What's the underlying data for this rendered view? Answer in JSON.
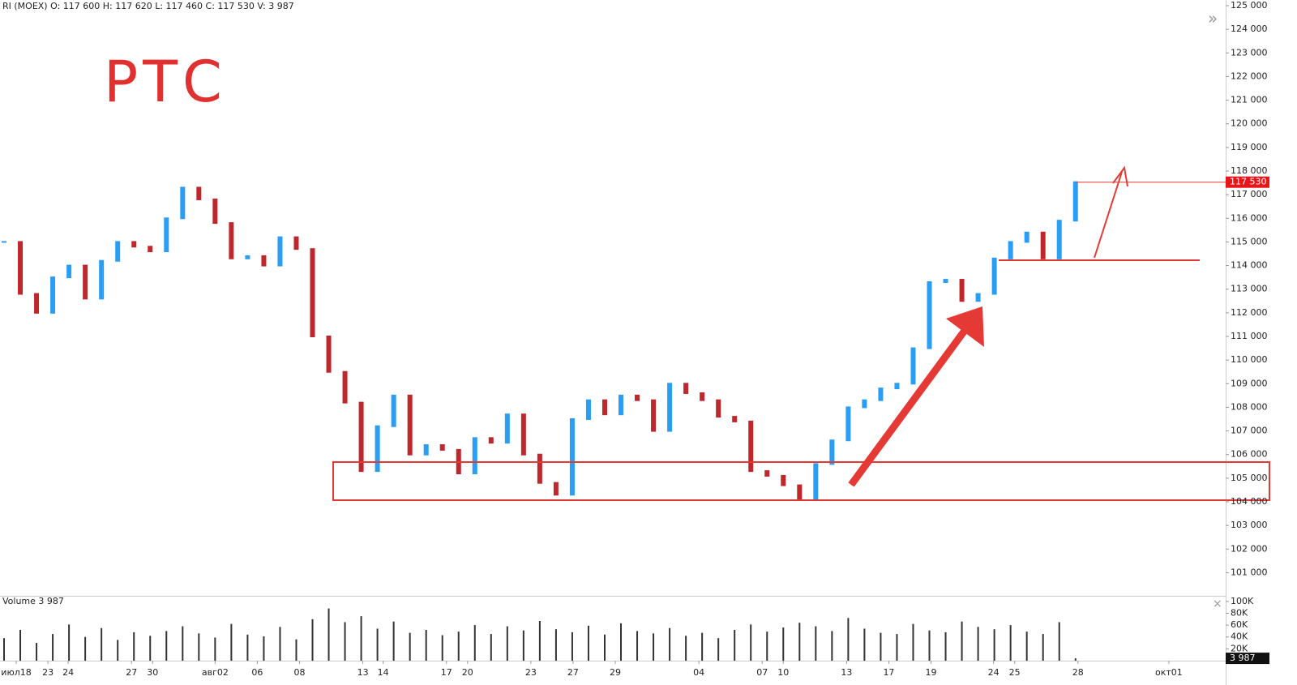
{
  "chart_data": {
    "type": "candlestick",
    "header": "RI (MOEX) O: 117 600 H: 117 620 L: 117 460 C: 117 530 V: 3 987",
    "annotation": "РТС",
    "up_color": "#2a9df4",
    "down_color": "#c0272d",
    "values": [
      115000,
      112800,
      112000,
      113500,
      114000,
      112600,
      114200,
      115000,
      114800,
      114600,
      116000,
      117300,
      116800,
      115800,
      114300,
      114400,
      114000,
      115200,
      114700,
      111000,
      109500,
      108200,
      105300,
      107200,
      108500,
      106000,
      106400,
      106200,
      105200,
      106700,
      106500,
      107700,
      106000,
      104800,
      104300,
      107500,
      108300,
      107700,
      108500,
      108300,
      107000,
      109000,
      108600,
      108300,
      107600,
      107400,
      105300,
      105100,
      104700,
      104100,
      105600,
      106600,
      108000,
      108300,
      108800,
      109000,
      110500,
      113300,
      113400,
      112500,
      112800,
      114300,
      115000,
      115400,
      114300,
      115900,
      117530
    ],
    "last_price": {
      "value": 117530,
      "label": "117 530"
    },
    "xlim": [
      -0.25,
      75.25
    ],
    "xticks": [
      {
        "value": 0.75,
        "label": "июл18"
      },
      {
        "value": 2.7,
        "label": "23"
      },
      {
        "value": 3.95,
        "label": "24"
      },
      {
        "value": 7.85,
        "label": "27"
      },
      {
        "value": 9.15,
        "label": "30"
      },
      {
        "value": 13,
        "label": "авг02"
      },
      {
        "value": 15.6,
        "label": "06"
      },
      {
        "value": 18.2,
        "label": "08"
      },
      {
        "value": 22.1,
        "label": "13"
      },
      {
        "value": 23.35,
        "label": "14"
      },
      {
        "value": 27.25,
        "label": "17"
      },
      {
        "value": 28.55,
        "label": "20"
      },
      {
        "value": 32.45,
        "label": "23"
      },
      {
        "value": 35.05,
        "label": "27"
      },
      {
        "value": 37.65,
        "label": "29"
      },
      {
        "value": 42.8,
        "label": "04"
      },
      {
        "value": 46.7,
        "label": "07"
      },
      {
        "value": 48,
        "label": "10"
      },
      {
        "value": 51.9,
        "label": "13"
      },
      {
        "value": 54.5,
        "label": "17"
      },
      {
        "value": 57.1,
        "label": "19"
      },
      {
        "value": 60.95,
        "label": "24"
      },
      {
        "value": 62.25,
        "label": "25"
      },
      {
        "value": 66.15,
        "label": "28"
      },
      {
        "value": 71.75,
        "label": "окт01"
      }
    ],
    "ylim": [
      100020,
      125240
    ],
    "yticks": [
      {
        "value": 101000,
        "label": "101 000"
      },
      {
        "value": 102000,
        "label": "102 000"
      },
      {
        "value": 103000,
        "label": "103 000"
      },
      {
        "value": 104000,
        "label": "104 000"
      },
      {
        "value": 105000,
        "label": "105 000"
      },
      {
        "value": 106000,
        "label": "106 000"
      },
      {
        "value": 107000,
        "label": "107 000"
      },
      {
        "value": 108000,
        "label": "108 000"
      },
      {
        "value": 109000,
        "label": "109 000"
      },
      {
        "value": 110000,
        "label": "110 000"
      },
      {
        "value": 111000,
        "label": "111 000"
      },
      {
        "value": 112000,
        "label": "112 000"
      },
      {
        "value": 113000,
        "label": "113 000"
      },
      {
        "value": 114000,
        "label": "114 000"
      },
      {
        "value": 115000,
        "label": "115 000"
      },
      {
        "value": 116000,
        "label": "116 000"
      },
      {
        "value": 117000,
        "label": "117 000"
      },
      {
        "value": 118000,
        "label": "118 000"
      },
      {
        "value": 119000,
        "label": "119 000"
      },
      {
        "value": 120000,
        "label": "120 000"
      },
      {
        "value": 121000,
        "label": "121 000"
      },
      {
        "value": 122000,
        "label": "122 000"
      },
      {
        "value": 123000,
        "label": "123 000"
      },
      {
        "value": 124000,
        "label": "124 000"
      },
      {
        "value": 125000,
        "label": "125 000"
      }
    ],
    "volume": {
      "title": "Volume 3 987",
      "color": "#333333",
      "values": [
        38000,
        52000,
        30000,
        45000,
        61000,
        40000,
        55000,
        35000,
        48000,
        42000,
        50000,
        58000,
        46000,
        39000,
        62000,
        44000,
        41000,
        57000,
        36000,
        70000,
        88000,
        65000,
        75000,
        54000,
        66000,
        47000,
        52000,
        43000,
        49000,
        60000,
        45000,
        58000,
        51000,
        67000,
        53000,
        48000,
        59000,
        44000,
        63000,
        50000,
        46000,
        55000,
        42000,
        47000,
        38000,
        52000,
        61000,
        49000,
        56000,
        64000,
        58000,
        50000,
        72000,
        54000,
        47000,
        45000,
        62000,
        51000,
        48000,
        66000,
        57000,
        53000,
        60000,
        49000,
        45000,
        65000,
        3987
      ],
      "last_label": "3 987",
      "ylim": [
        0,
        108000
      ],
      "yticks": [
        {
          "value": 100000,
          "label": "100K"
        },
        {
          "value": 80000,
          "label": "80K"
        },
        {
          "value": 60000,
          "label": "60K"
        },
        {
          "value": 40000,
          "label": "40K"
        },
        {
          "value": 20000,
          "label": "20K"
        }
      ]
    }
  }
}
